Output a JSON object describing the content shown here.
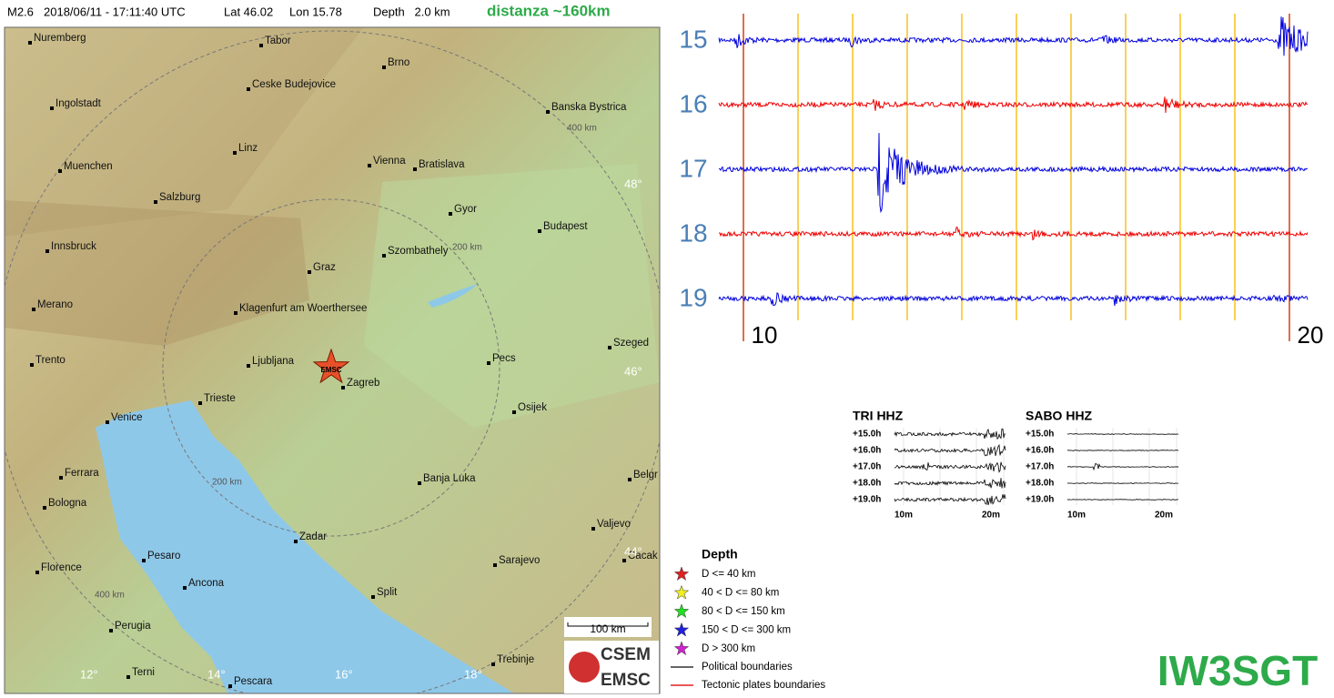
{
  "header": {
    "magnitude": "M2.6",
    "datetime": "2018/06/11 - 17:11:40 UTC",
    "lat": "Lat 46.02",
    "lon": "Lon 15.78",
    "depth": "Depth   2.0 km",
    "distance": "distanza ~160km"
  },
  "map": {
    "cities": [
      "Nuremberg",
      "Tabor",
      "Brno",
      "Ceske Budejovice",
      "Ingolstadt",
      "Banska Bystrica",
      "Linz",
      "Vienna",
      "Bratislava",
      "Muenchen",
      "Salzburg",
      "Gyor",
      "Budapest",
      "Innsbruck",
      "Szombathely",
      "Graz",
      "Merano",
      "Klagenfurt am Woerthersee",
      "Szeged",
      "Trento",
      "Ljubljana",
      "Pecs",
      "Zagreb",
      "Trieste",
      "Osijek",
      "Venice",
      "Ferrara",
      "Banja Luka",
      "Belgr",
      "Bologna",
      "Valjevo",
      "Zadar",
      "Pesaro",
      "Sarajevo",
      "Cacak",
      "Florence",
      "Ancona",
      "Split",
      "Perugia",
      "Trebinje",
      "Terni",
      "Pescara"
    ],
    "ring_labels": [
      "400 km",
      "200 km",
      "200 km",
      "400 km"
    ],
    "lat_labels": [
      "48°",
      "46°",
      "44°"
    ],
    "lon_labels": [
      "12°",
      "14°",
      "16°",
      "18°"
    ],
    "star_label": "EMSC",
    "scale": "100 km",
    "logo": [
      "CSEM",
      "EMSC"
    ]
  },
  "legend": {
    "title": "Depth",
    "items": [
      {
        "label": "D <= 40 km",
        "color": "#e02020"
      },
      {
        "label": "40 < D <= 80 km",
        "color": "#f0f020"
      },
      {
        "label": "80 < D <= 150 km",
        "color": "#20e020"
      },
      {
        "label": "150 < D <= 300 km",
        "color": "#2020e0"
      },
      {
        "label": "D > 300 km",
        "color": "#d020d0"
      }
    ],
    "lines": [
      {
        "label": "Political boundaries",
        "color": "#333333"
      },
      {
        "label": "Tectonic plates boundaries",
        "color": "#e02020"
      }
    ]
  },
  "seismogram": {
    "rows": [
      "15",
      "16",
      "17",
      "18",
      "19"
    ],
    "x_labels": [
      "10",
      "20"
    ]
  },
  "insets": [
    {
      "title": "TRI HHZ",
      "rows": [
        "+15.0h",
        "+16.0h",
        "+17.0h",
        "+18.0h",
        "+19.0h"
      ],
      "x_labels": [
        "10m",
        "20m"
      ]
    },
    {
      "title": "SABO HHZ",
      "rows": [
        "+15.0h",
        "+16.0h",
        "+17.0h",
        "+18.0h",
        "+19.0h"
      ],
      "x_labels": [
        "10m",
        "20m"
      ]
    }
  ],
  "signature": "IW3SGT"
}
